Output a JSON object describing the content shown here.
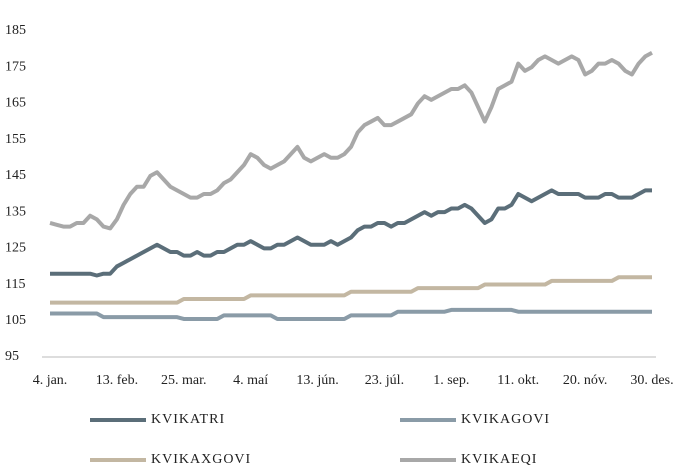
{
  "chart_data": {
    "type": "line",
    "categories": [
      "4. jan.",
      null,
      null,
      null,
      null,
      null,
      null,
      null,
      null,
      null,
      "13. feb.",
      null,
      null,
      null,
      null,
      null,
      null,
      null,
      null,
      null,
      "25. mar.",
      null,
      null,
      null,
      null,
      null,
      null,
      null,
      null,
      null,
      "4. maí",
      null,
      null,
      null,
      null,
      null,
      null,
      null,
      null,
      null,
      "13. jún.",
      null,
      null,
      null,
      null,
      null,
      null,
      null,
      null,
      null,
      "23. júl.",
      null,
      null,
      null,
      null,
      null,
      null,
      null,
      null,
      null,
      "1. sep.",
      null,
      null,
      null,
      null,
      null,
      null,
      null,
      null,
      null,
      "11. okt.",
      null,
      null,
      null,
      null,
      null,
      null,
      null,
      null,
      null,
      "20. nóv.",
      null,
      null,
      null,
      null,
      null,
      null,
      null,
      null,
      null,
      "30. des."
    ],
    "series": [
      {
        "name": "KVIKATRI",
        "color": "#5b6e79",
        "values": [
          118,
          118,
          118,
          118,
          118,
          118,
          118,
          117.5,
          118,
          118,
          120,
          121,
          122,
          123,
          124,
          125,
          126,
          125,
          124,
          124,
          123,
          123,
          124,
          123,
          123,
          124,
          124,
          125,
          126,
          126,
          127,
          126,
          125,
          125,
          126,
          126,
          127,
          128,
          127,
          126,
          126,
          126,
          127,
          126,
          127,
          128,
          130,
          131,
          131,
          132,
          132,
          131,
          132,
          132,
          133,
          134,
          135,
          134,
          135,
          135,
          136,
          136,
          137,
          136,
          134,
          132,
          133,
          136,
          136,
          137,
          140,
          139,
          138,
          139,
          140,
          141,
          140,
          140,
          140,
          140,
          139,
          139,
          139,
          140,
          140,
          139,
          139,
          139,
          140,
          141,
          141
        ]
      },
      {
        "name": "KVIKAGOVI",
        "color": "#8a9ba7",
        "values": [
          107,
          107,
          107,
          107,
          107,
          107,
          107,
          107,
          106,
          106,
          106,
          106,
          106,
          106,
          106,
          106,
          106,
          106,
          106,
          106,
          105.5,
          105.5,
          105.5,
          105.5,
          105.5,
          105.5,
          106.5,
          106.5,
          106.5,
          106.5,
          106.5,
          106.5,
          106.5,
          106.5,
          105.5,
          105.5,
          105.5,
          105.5,
          105.5,
          105.5,
          105.5,
          105.5,
          105.5,
          105.5,
          105.5,
          106.5,
          106.5,
          106.5,
          106.5,
          106.5,
          106.5,
          106.5,
          107.5,
          107.5,
          107.5,
          107.5,
          107.5,
          107.5,
          107.5,
          107.5,
          108,
          108,
          108,
          108,
          108,
          108,
          108,
          108,
          108,
          108,
          107.5,
          107.5,
          107.5,
          107.5,
          107.5,
          107.5,
          107.5,
          107.5,
          107.5,
          107.5,
          107.5,
          107.5,
          107.5,
          107.5,
          107.5,
          107.5,
          107.5,
          107.5,
          107.5,
          107.5,
          107.5
        ]
      },
      {
        "name": "KVIKAXGOVI",
        "color": "#c3b7a2",
        "values": [
          110,
          110,
          110,
          110,
          110,
          110,
          110,
          110,
          110,
          110,
          110,
          110,
          110,
          110,
          110,
          110,
          110,
          110,
          110,
          110,
          111,
          111,
          111,
          111,
          111,
          111,
          111,
          111,
          111,
          111,
          112,
          112,
          112,
          112,
          112,
          112,
          112,
          112,
          112,
          112,
          112,
          112,
          112,
          112,
          112,
          113,
          113,
          113,
          113,
          113,
          113,
          113,
          113,
          113,
          113,
          114,
          114,
          114,
          114,
          114,
          114,
          114,
          114,
          114,
          114,
          115,
          115,
          115,
          115,
          115,
          115,
          115,
          115,
          115,
          115,
          116,
          116,
          116,
          116,
          116,
          116,
          116,
          116,
          116,
          116,
          117,
          117,
          117,
          117,
          117,
          117
        ]
      },
      {
        "name": "KVIKAEQI",
        "color": "#a8a8a8",
        "values": [
          132,
          131.5,
          131,
          131,
          132,
          132,
          134,
          133,
          131,
          130.5,
          133,
          137,
          140,
          142,
          142,
          145,
          146,
          144,
          142,
          141,
          140,
          139,
          139,
          140,
          140,
          141,
          143,
          144,
          146,
          148,
          151,
          150,
          148,
          147,
          148,
          149,
          151,
          153,
          150,
          149,
          150,
          151,
          150,
          150,
          151,
          153,
          157,
          159,
          160,
          161,
          159,
          159,
          160,
          161,
          162,
          165,
          167,
          166,
          167,
          168,
          169,
          169,
          170,
          168,
          164,
          160,
          164,
          169,
          170,
          171,
          176,
          174,
          175,
          177,
          178,
          177,
          176,
          177,
          178,
          177,
          173,
          174,
          176,
          176,
          177,
          176,
          174,
          173,
          176,
          178,
          179
        ]
      }
    ],
    "ylim": [
      95,
      185
    ],
    "yticks": [
      95,
      105,
      115,
      125,
      135,
      145,
      155,
      165,
      175,
      185
    ],
    "grid": false
  }
}
